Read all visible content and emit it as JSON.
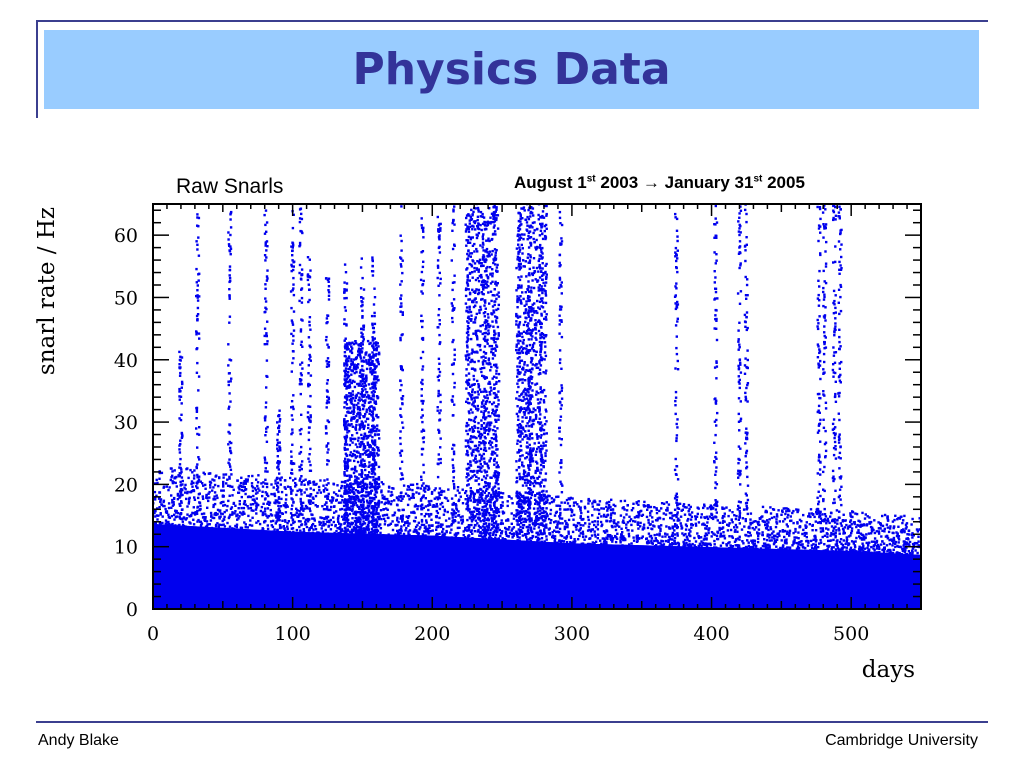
{
  "slide": {
    "title": "Physics Data",
    "footer_left": "Andy Blake",
    "footer_right": "Cambridge University",
    "colors": {
      "title_bar": "#99ccff",
      "title_text": "#333399",
      "frame": "#3b3f8f",
      "points": "#0000ee"
    }
  },
  "chart_data": {
    "type": "scatter",
    "title": "Raw Snarls",
    "date_range": {
      "start_text": "August 1",
      "start_sup": "st",
      "start_year": " 2003 → January 31",
      "end_sup": "st",
      "end_year": " 2005"
    },
    "xlabel": "days",
    "ylabel": "snarl rate / Hz",
    "xlim": [
      0,
      550
    ],
    "ylim": [
      0,
      65
    ],
    "xticks": [
      0,
      100,
      200,
      300,
      400,
      500
    ],
    "yticks": [
      0,
      10,
      20,
      30,
      40,
      50,
      60
    ],
    "grid": false,
    "baseline_band": {
      "description_points": [
        {
          "day": 0,
          "floor_max": 22
        },
        {
          "day": 100,
          "floor_max": 20
        },
        {
          "day": 200,
          "floor_max": 19
        },
        {
          "day": 300,
          "floor_max": 17
        },
        {
          "day": 400,
          "floor_max": 16
        },
        {
          "day": 500,
          "floor_max": 15
        },
        {
          "day": 550,
          "floor_max": 14
        }
      ]
    },
    "spike_columns": [
      {
        "day": 20,
        "ymax": 42
      },
      {
        "day": 32,
        "ymax": 64
      },
      {
        "day": 55,
        "ymax": 64
      },
      {
        "day": 81,
        "ymax": 64
      },
      {
        "day": 90,
        "ymax": 32
      },
      {
        "day": 100,
        "ymax": 65
      },
      {
        "day": 106,
        "ymax": 65
      },
      {
        "day": 112,
        "ymax": 57
      },
      {
        "day": 125,
        "ymax": 57
      },
      {
        "day": 138,
        "ymax": 57
      },
      {
        "day": 150,
        "ymax": 57
      },
      {
        "day": 158,
        "ymax": 57
      },
      {
        "day": 178,
        "ymax": 65
      },
      {
        "day": 193,
        "ymax": 63
      },
      {
        "day": 205,
        "ymax": 65
      },
      {
        "day": 215,
        "ymax": 65
      },
      {
        "day": 225,
        "ymax": 65
      },
      {
        "day": 238,
        "ymax": 65
      },
      {
        "day": 245,
        "ymax": 65
      },
      {
        "day": 262,
        "ymax": 65
      },
      {
        "day": 270,
        "ymax": 65
      },
      {
        "day": 278,
        "ymax": 65
      },
      {
        "day": 292,
        "ymax": 65
      },
      {
        "day": 375,
        "ymax": 65
      },
      {
        "day": 403,
        "ymax": 65
      },
      {
        "day": 420,
        "ymax": 65
      },
      {
        "day": 425,
        "ymax": 65
      },
      {
        "day": 477,
        "ymax": 65
      },
      {
        "day": 481,
        "ymax": 65
      },
      {
        "day": 488,
        "ymax": 65
      },
      {
        "day": 492,
        "ymax": 65
      }
    ],
    "dense_bursts": [
      {
        "day_start": 137,
        "day_end": 162,
        "ymax": 43
      },
      {
        "day_start": 260,
        "day_end": 282,
        "ymax": 65
      },
      {
        "day_start": 225,
        "day_end": 248,
        "ymax": 65
      }
    ]
  }
}
